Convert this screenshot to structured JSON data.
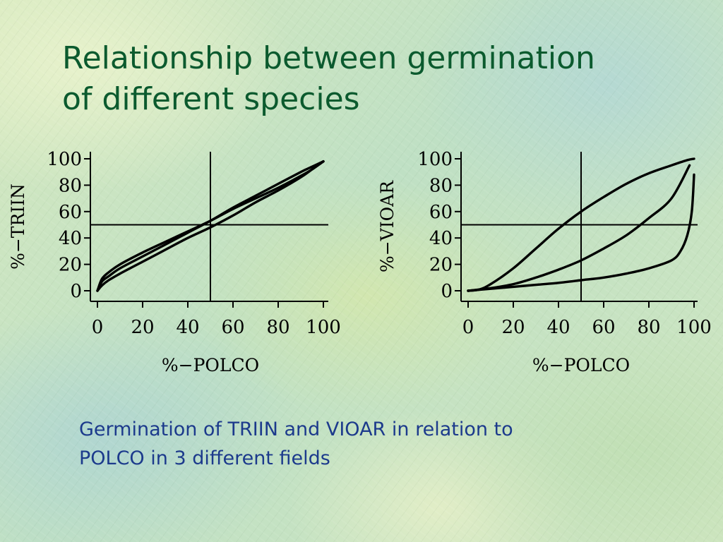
{
  "slide": {
    "title_lines": [
      "Relationship between germination",
      "of different species"
    ],
    "caption_lines": [
      "Germination of TRIIN and VIOAR in relation to",
      "POLCO in 3 different fields"
    ]
  },
  "chart_data": [
    {
      "type": "line",
      "xlabel": "%−POLCO",
      "ylabel": "%−TRIIN",
      "xlim": [
        0,
        100
      ],
      "ylim": [
        0,
        100
      ],
      "xticks": [
        "0",
        "20",
        "40",
        "60",
        "80",
        "100"
      ],
      "yticks": [
        "0",
        "20",
        "40",
        "60",
        "80",
        "100"
      ],
      "reference_lines": {
        "x": 50,
        "y": 50
      },
      "series": [
        {
          "x": [
            0,
            2,
            5,
            10,
            20,
            30,
            40,
            50,
            60,
            70,
            80,
            90,
            95,
            100
          ],
          "values": [
            0,
            9,
            14,
            20,
            29,
            37,
            45,
            53,
            62,
            70,
            78,
            87,
            92,
            98
          ]
        },
        {
          "x": [
            0,
            2,
            5,
            10,
            20,
            30,
            40,
            50,
            60,
            70,
            80,
            90,
            95,
            100
          ],
          "values": [
            0,
            7,
            11,
            17,
            26,
            35,
            44,
            53,
            63,
            72,
            81,
            90,
            94,
            98
          ]
        },
        {
          "x": [
            0,
            2,
            5,
            10,
            20,
            30,
            40,
            50,
            60,
            70,
            80,
            90,
            95,
            100
          ],
          "values": [
            0,
            4,
            8,
            13,
            22,
            31,
            40,
            48,
            57,
            67,
            76,
            86,
            92,
            98
          ]
        }
      ]
    },
    {
      "type": "line",
      "xlabel": "%−POLCO",
      "ylabel": "%−VIOAR",
      "xlim": [
        0,
        100
      ],
      "ylim": [
        0,
        100
      ],
      "xticks": [
        "0",
        "20",
        "40",
        "60",
        "80",
        "100"
      ],
      "yticks": [
        "0",
        "20",
        "40",
        "60",
        "80",
        "100"
      ],
      "reference_lines": {
        "x": 50,
        "y": 50
      },
      "series": [
        {
          "x": [
            0,
            5,
            10,
            20,
            30,
            40,
            50,
            60,
            70,
            80,
            90,
            97,
            100
          ],
          "values": [
            0,
            1,
            5,
            17,
            32,
            47,
            60,
            71,
            81,
            89,
            95,
            99,
            100
          ]
        },
        {
          "x": [
            0,
            10,
            20,
            30,
            40,
            50,
            60,
            70,
            80,
            90,
            98
          ],
          "values": [
            0,
            2,
            5,
            10,
            16,
            23,
            32,
            42,
            55,
            70,
            95
          ]
        },
        {
          "x": [
            0,
            10,
            20,
            30,
            40,
            50,
            60,
            70,
            80,
            90,
            94,
            97,
            99,
            100
          ],
          "values": [
            0,
            1.5,
            3,
            4.5,
            6,
            8,
            10,
            13,
            17,
            23,
            30,
            42,
            60,
            88
          ]
        }
      ]
    }
  ]
}
